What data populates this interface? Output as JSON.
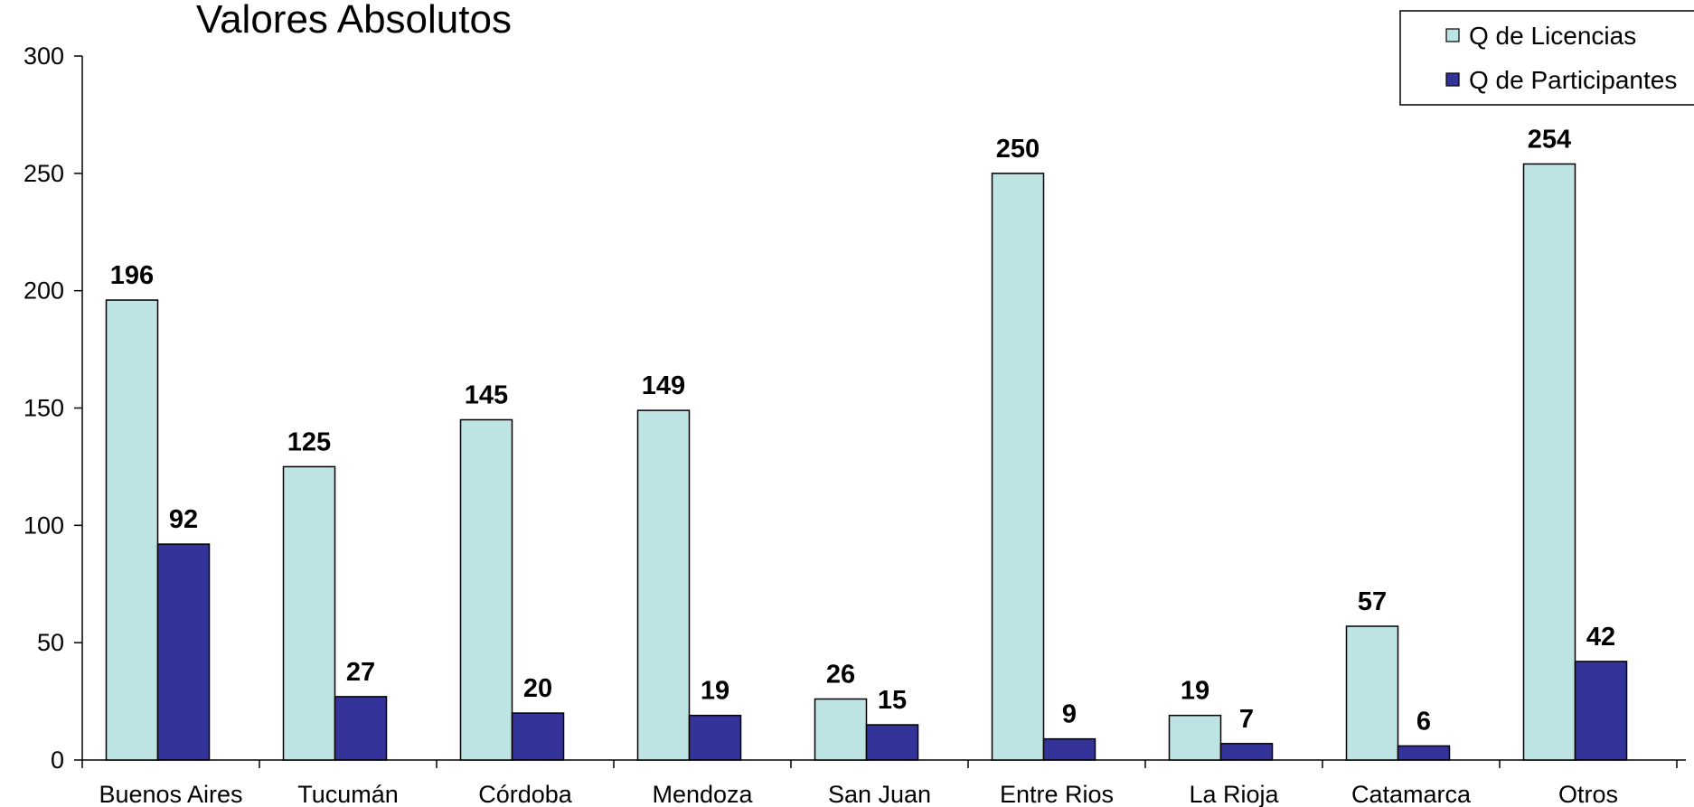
{
  "chart_data": {
    "type": "bar",
    "title": "Valores Absolutos",
    "xlabel": "",
    "ylabel": "",
    "ylim": [
      0,
      300
    ],
    "yticks": [
      "0",
      "50",
      "100",
      "150",
      "200",
      "250",
      "300"
    ],
    "grid": false,
    "legend_position": "top-right",
    "categories": [
      "Buenos Aires",
      "Tucumán",
      "Córdoba",
      "Mendoza",
      "San Juan",
      "Entre Rios",
      "La Rioja",
      "Catamarca",
      "Otros"
    ],
    "series": [
      {
        "name": "Q de Licencias",
        "color": "#BDE3E3",
        "values": [
          196,
          125,
          145,
          149,
          26,
          250,
          19,
          57,
          254
        ]
      },
      {
        "name": "Q de Participantes",
        "color": "#333399",
        "values": [
          92,
          27,
          20,
          19,
          15,
          9,
          7,
          6,
          42
        ]
      }
    ]
  }
}
